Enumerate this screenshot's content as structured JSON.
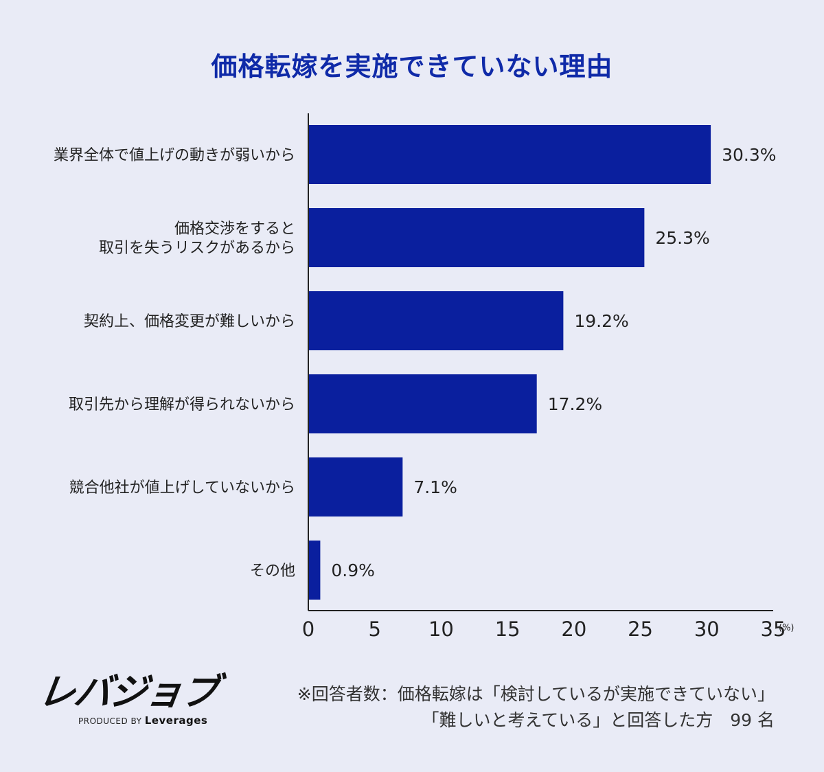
{
  "title": "価格転嫁を実施できていない理由",
  "colors": {
    "bar": "#0a1f9e",
    "title": "#0f2aa8",
    "background": "#e9ebf6",
    "axis": "#222222"
  },
  "chart_data": {
    "type": "bar",
    "orientation": "horizontal",
    "title": "価格転嫁を実施できていない理由",
    "categories": [
      [
        "業界全体で値上げの動きが弱いから"
      ],
      [
        "価格交渉をすると",
        "取引を失うリスクがあるから"
      ],
      [
        "契約上、価格変更が難しいから"
      ],
      [
        "取引先から理解が得られないから"
      ],
      [
        "競合他社が値上げしていないから"
      ],
      [
        "その他"
      ]
    ],
    "values": [
      30.3,
      25.3,
      19.2,
      17.2,
      7.1,
      0.9
    ],
    "value_labels": [
      "30.3%",
      "25.3%",
      "19.2%",
      "17.2%",
      "7.1%",
      "0.9%"
    ],
    "x_ticks": [
      "0",
      "5",
      "10",
      "15",
      "20",
      "25",
      "30",
      "35"
    ],
    "xlim": [
      0,
      35
    ],
    "x_unit": "(%)",
    "grid": false,
    "legend": "none"
  },
  "logo": {
    "name": "レバジョブ",
    "produced_by": "PRODUCED BY",
    "company": "Leverages"
  },
  "note": {
    "line1": "※回答者数：価格転嫁は「検討しているが実施できていない」",
    "line2": "「難しいと考えている」と回答した方　99 名"
  }
}
